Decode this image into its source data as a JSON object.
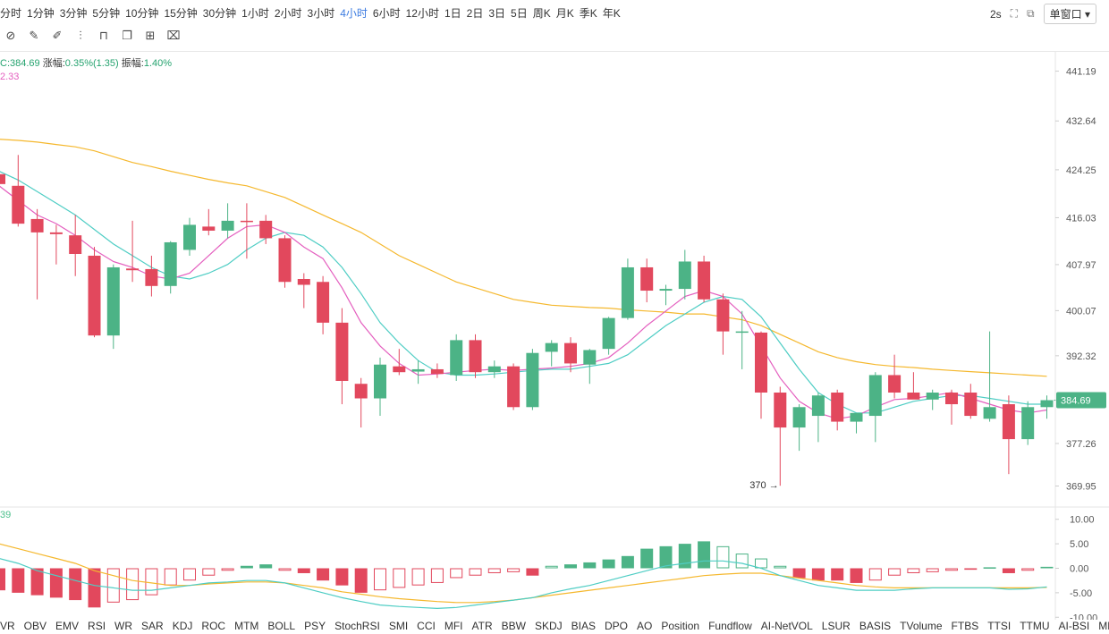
{
  "toolbar": {
    "periods": [
      "分时",
      "1分钟",
      "3分钟",
      "5分钟",
      "10分钟",
      "15分钟",
      "30分钟",
      "1小时",
      "2小时",
      "3小时",
      "4小时",
      "6小时",
      "12小时",
      "1日",
      "2日",
      "3日",
      "5日",
      "周K",
      "月K",
      "季K",
      "年K"
    ],
    "active_period": "4小时",
    "refresh": "2s",
    "window_mode": "单窗口"
  },
  "info": {
    "close_label": "C:",
    "close": "384.69",
    "change_label": "涨幅:",
    "change": "0.35%(1.35)",
    "amplitude_label": "振幅:",
    "amplitude": "1.40%",
    "ma_value": "2.33",
    "sub_value": "39"
  },
  "colors": {
    "up": "#4cb386",
    "down": "#e2485d",
    "ma_short": "#e45fbf",
    "ma_mid": "#4ecdc4",
    "ma_long": "#f5b82e"
  },
  "indicators": [
    "VR",
    "OBV",
    "EMV",
    "RSI",
    "WR",
    "SAR",
    "KDJ",
    "ROC",
    "MTM",
    "BOLL",
    "PSY",
    "StochRSI",
    "SMI",
    "CCI",
    "MFI",
    "ATR",
    "BBW",
    "SKDJ",
    "BIAS",
    "DPO",
    "AO",
    "Position",
    "Fundflow",
    "AI-NetVOL",
    "LSUR",
    "BASIS",
    "TVolume",
    "FTBS",
    "TTSI",
    "TTMU",
    "AI-BSI",
    "MLR"
  ],
  "chart_data": [
    {
      "type": "candlestick",
      "y_ticks": [
        441.19,
        432.64,
        424.25,
        416.03,
        407.97,
        400.07,
        392.32,
        384.69,
        377.26,
        369.95
      ],
      "ylim": [
        366.5,
        444.5
      ],
      "last_price": 384.69,
      "annotation": "370",
      "candles": [
        {
          "o": 423.5,
          "h": 424.5,
          "l": 421.5,
          "c": 421.8
        },
        {
          "o": 421.5,
          "h": 426.8,
          "l": 414.5,
          "c": 415.0
        },
        {
          "o": 415.8,
          "h": 417.5,
          "l": 402.0,
          "c": 413.5
        },
        {
          "o": 413.5,
          "h": 414.8,
          "l": 408.0,
          "c": 413.2
        },
        {
          "o": 413.0,
          "h": 416.5,
          "l": 406.0,
          "c": 409.8
        },
        {
          "o": 409.5,
          "h": 411.0,
          "l": 395.5,
          "c": 395.8
        },
        {
          "o": 395.8,
          "h": 408.0,
          "l": 393.5,
          "c": 407.5
        },
        {
          "o": 407.3,
          "h": 415.5,
          "l": 405.0,
          "c": 407.0
        },
        {
          "o": 407.2,
          "h": 409.5,
          "l": 402.5,
          "c": 404.3
        },
        {
          "o": 404.3,
          "h": 412.0,
          "l": 403.0,
          "c": 411.8
        },
        {
          "o": 410.5,
          "h": 416.0,
          "l": 409.5,
          "c": 414.8
        },
        {
          "o": 414.5,
          "h": 417.5,
          "l": 413.0,
          "c": 413.8
        },
        {
          "o": 413.8,
          "h": 418.5,
          "l": 412.5,
          "c": 415.5
        },
        {
          "o": 415.5,
          "h": 418.5,
          "l": 409.0,
          "c": 415.3
        },
        {
          "o": 415.5,
          "h": 416.5,
          "l": 411.5,
          "c": 412.5
        },
        {
          "o": 412.5,
          "h": 413.0,
          "l": 404.0,
          "c": 405.0
        },
        {
          "o": 405.5,
          "h": 406.5,
          "l": 400.5,
          "c": 404.5
        },
        {
          "o": 405.0,
          "h": 406.0,
          "l": 396.0,
          "c": 398.0
        },
        {
          "o": 398.0,
          "h": 400.5,
          "l": 384.0,
          "c": 388.0
        },
        {
          "o": 387.5,
          "h": 388.5,
          "l": 380.0,
          "c": 385.0
        },
        {
          "o": 385.0,
          "h": 392.0,
          "l": 382.0,
          "c": 390.8
        },
        {
          "o": 390.5,
          "h": 393.5,
          "l": 389.0,
          "c": 389.5
        },
        {
          "o": 389.6,
          "h": 391.5,
          "l": 387.5,
          "c": 390.0
        },
        {
          "o": 390.0,
          "h": 391.0,
          "l": 388.5,
          "c": 389.2
        },
        {
          "o": 389.0,
          "h": 396.0,
          "l": 388.0,
          "c": 395.0
        },
        {
          "o": 395.0,
          "h": 396.0,
          "l": 388.5,
          "c": 389.5
        },
        {
          "o": 389.5,
          "h": 391.5,
          "l": 388.5,
          "c": 390.5
        },
        {
          "o": 390.5,
          "h": 391.0,
          "l": 383.0,
          "c": 383.5
        },
        {
          "o": 383.5,
          "h": 393.5,
          "l": 383.0,
          "c": 392.8
        },
        {
          "o": 393.0,
          "h": 395.0,
          "l": 390.5,
          "c": 394.5
        },
        {
          "o": 394.5,
          "h": 395.5,
          "l": 389.5,
          "c": 391.0
        },
        {
          "o": 390.8,
          "h": 393.5,
          "l": 387.5,
          "c": 393.3
        },
        {
          "o": 393.5,
          "h": 399.0,
          "l": 392.5,
          "c": 398.8
        },
        {
          "o": 398.8,
          "h": 409.0,
          "l": 398.5,
          "c": 407.5
        },
        {
          "o": 407.5,
          "h": 409.0,
          "l": 401.5,
          "c": 403.5
        },
        {
          "o": 403.5,
          "h": 404.5,
          "l": 401.0,
          "c": 403.8
        },
        {
          "o": 403.8,
          "h": 410.5,
          "l": 402.0,
          "c": 408.5
        },
        {
          "o": 408.5,
          "h": 409.5,
          "l": 401.5,
          "c": 402.0
        },
        {
          "o": 402.0,
          "h": 403.0,
          "l": 392.5,
          "c": 396.5
        },
        {
          "o": 396.5,
          "h": 400.0,
          "l": 390.0,
          "c": 396.5
        },
        {
          "o": 396.3,
          "h": 396.5,
          "l": 381.5,
          "c": 386.0
        },
        {
          "o": 386.0,
          "h": 387.0,
          "l": 370.0,
          "c": 380.0
        },
        {
          "o": 380.0,
          "h": 384.0,
          "l": 376.0,
          "c": 383.5
        },
        {
          "o": 382.0,
          "h": 386.0,
          "l": 377.5,
          "c": 385.5
        },
        {
          "o": 386.0,
          "h": 386.5,
          "l": 379.5,
          "c": 381.0
        },
        {
          "o": 381.0,
          "h": 382.5,
          "l": 379.0,
          "c": 382.5
        },
        {
          "o": 382.0,
          "h": 389.5,
          "l": 377.5,
          "c": 389.0
        },
        {
          "o": 389.0,
          "h": 392.5,
          "l": 385.0,
          "c": 386.0
        },
        {
          "o": 386.0,
          "h": 389.5,
          "l": 385.0,
          "c": 384.8
        },
        {
          "o": 384.8,
          "h": 386.5,
          "l": 383.0,
          "c": 386.0
        },
        {
          "o": 386.0,
          "h": 386.5,
          "l": 380.5,
          "c": 384.0
        },
        {
          "o": 386.0,
          "h": 387.5,
          "l": 381.5,
          "c": 382.0
        },
        {
          "o": 381.5,
          "h": 396.5,
          "l": 381.0,
          "c": 383.5
        },
        {
          "o": 384.0,
          "h": 385.5,
          "l": 372.0,
          "c": 378.0
        },
        {
          "o": 378.0,
          "h": 384.5,
          "l": 377.0,
          "c": 383.5
        },
        {
          "o": 383.5,
          "h": 385.5,
          "l": 381.5,
          "c": 384.69
        }
      ],
      "ma_short": [
        421.5,
        419.0,
        416.5,
        415.0,
        413.0,
        410.5,
        408.5,
        407.5,
        406.0,
        405.5,
        406.5,
        409.5,
        412.5,
        414.5,
        414.8,
        413.5,
        411.0,
        409.0,
        404.0,
        398.0,
        394.0,
        391.0,
        389.0,
        389.2,
        389.5,
        389.8,
        390.0,
        389.8,
        390.0,
        390.2,
        390.5,
        391.0,
        392.0,
        394.5,
        397.5,
        400.0,
        402.5,
        403.5,
        402.5,
        399.5,
        394.0,
        388.5,
        384.5,
        382.5,
        381.5,
        382.0,
        383.5,
        384.8,
        385.0,
        385.5,
        386.0,
        385.0,
        384.0,
        383.0,
        382.5,
        383.0
      ],
      "ma_mid": [
        424.0,
        422.5,
        420.5,
        418.5,
        416.5,
        414.0,
        411.5,
        409.5,
        407.5,
        406.0,
        405.5,
        406.5,
        408.0,
        410.5,
        412.5,
        413.5,
        413.0,
        411.0,
        407.5,
        403.0,
        398.0,
        394.5,
        391.5,
        389.5,
        389.0,
        389.0,
        389.2,
        389.5,
        389.8,
        390.0,
        390.0,
        390.5,
        391.0,
        392.5,
        395.0,
        397.5,
        399.5,
        401.5,
        402.5,
        402.0,
        399.0,
        394.5,
        390.0,
        386.0,
        384.0,
        382.5,
        382.5,
        383.5,
        384.5,
        385.0,
        385.5,
        385.5,
        385.0,
        384.5,
        384.0,
        384.0
      ],
      "ma_long": [
        429.5,
        429.3,
        429.0,
        428.6,
        428.2,
        427.5,
        426.5,
        425.5,
        424.8,
        424.0,
        423.3,
        422.6,
        422.0,
        421.5,
        420.5,
        419.5,
        418.0,
        416.5,
        415.0,
        413.5,
        411.5,
        409.5,
        408.0,
        406.5,
        405.0,
        404.0,
        403.0,
        402.0,
        401.5,
        401.0,
        400.8,
        400.6,
        400.5,
        400.2,
        400.0,
        399.8,
        399.5,
        399.5,
        399.0,
        398.5,
        397.5,
        396.0,
        394.5,
        393.0,
        392.0,
        391.3,
        390.8,
        390.5,
        390.3,
        390.0,
        389.8,
        389.6,
        389.4,
        389.2,
        389.0,
        388.8
      ]
    },
    {
      "type": "bar",
      "y_ticks": [
        10.0,
        5.0,
        0.0,
        -5.0,
        -10.0
      ],
      "ylim": [
        -10.5,
        10.5
      ],
      "histogram": [
        -4.5,
        -5.0,
        -5.5,
        -6.0,
        -6.5,
        -8.0,
        -7.0,
        -6.5,
        -5.5,
        -3.5,
        -2.5,
        -1.5,
        -0.5,
        0.5,
        0.8,
        -0.5,
        -1.0,
        -2.5,
        -3.5,
        -5.0,
        -4.5,
        -4.0,
        -3.5,
        -3.0,
        -2.0,
        -1.5,
        -1.0,
        -0.8,
        -1.5,
        0.5,
        0.8,
        1.2,
        1.8,
        2.5,
        4.0,
        4.5,
        5.0,
        5.5,
        4.5,
        3.0,
        2.0,
        0.5,
        -2.0,
        -2.5,
        -2.5,
        -3.0,
        -2.5,
        -1.5,
        -1.0,
        -0.8,
        -0.5,
        -0.3,
        0.2,
        -1.0,
        -0.5,
        0.3
      ],
      "line_a": [
        2.0,
        1.0,
        -0.5,
        -1.5,
        -2.5,
        -3.5,
        -4.0,
        -4.5,
        -4.5,
        -4.0,
        -3.5,
        -3.0,
        -2.8,
        -2.5,
        -2.5,
        -3.0,
        -4.0,
        -5.0,
        -6.0,
        -6.8,
        -7.5,
        -7.8,
        -8.0,
        -8.2,
        -8.0,
        -7.5,
        -7.0,
        -6.5,
        -6.0,
        -5.0,
        -4.2,
        -3.5,
        -2.5,
        -1.5,
        -0.5,
        0.5,
        1.0,
        1.5,
        1.5,
        1.0,
        0.0,
        -1.5,
        -2.5,
        -3.5,
        -4.0,
        -4.5,
        -4.5,
        -4.5,
        -4.2,
        -4.0,
        -4.0,
        -4.0,
        -4.0,
        -4.3,
        -4.2,
        -3.8
      ],
      "line_b": [
        5.0,
        4.0,
        3.0,
        2.0,
        1.0,
        -0.5,
        -1.5,
        -2.5,
        -3.0,
        -3.5,
        -3.5,
        -3.2,
        -3.0,
        -2.8,
        -2.8,
        -3.0,
        -3.5,
        -4.0,
        -4.8,
        -5.3,
        -5.8,
        -6.2,
        -6.5,
        -6.8,
        -7.0,
        -7.0,
        -6.8,
        -6.5,
        -6.0,
        -5.5,
        -5.0,
        -4.5,
        -4.0,
        -3.5,
        -3.0,
        -2.5,
        -2.0,
        -1.5,
        -1.2,
        -1.0,
        -1.0,
        -1.5,
        -2.0,
        -2.5,
        -3.0,
        -3.5,
        -3.8,
        -4.0,
        -4.0,
        -4.0,
        -4.0,
        -4.0,
        -4.0,
        -4.0,
        -4.0,
        -3.9
      ]
    }
  ]
}
